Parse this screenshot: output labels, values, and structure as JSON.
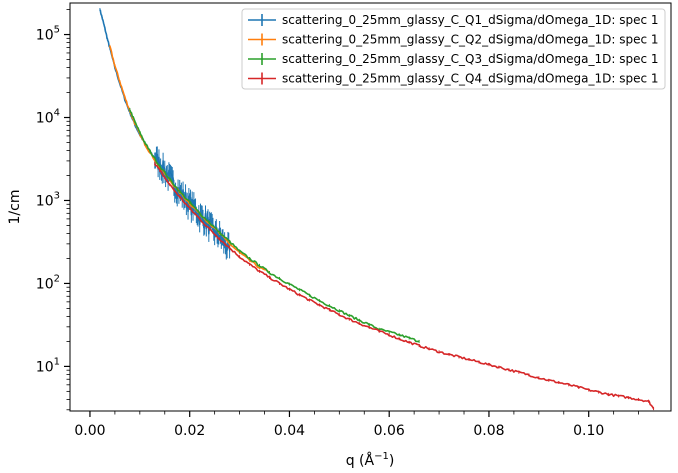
{
  "chart_data": {
    "type": "line",
    "title": "",
    "xlabel": "q (Å",
    "xlabel_sup": "−1",
    "xlabel_close": ")",
    "ylabel": "1/cm",
    "xlim": [
      -0.004,
      0.1165
    ],
    "ylim": [
      2.9,
      240000
    ],
    "yscale": "log",
    "grid": false,
    "legend_position": "top-right",
    "x_ticks": [
      {
        "value": 0.0,
        "label": "0.00"
      },
      {
        "value": 0.02,
        "label": "0.02"
      },
      {
        "value": 0.04,
        "label": "0.04"
      },
      {
        "value": 0.06,
        "label": "0.06"
      },
      {
        "value": 0.08,
        "label": "0.08"
      },
      {
        "value": 0.1,
        "label": "0.10"
      }
    ],
    "y_ticks": [
      {
        "value": 10,
        "base": "10",
        "exp": "1"
      },
      {
        "value": 100,
        "base": "10",
        "exp": "2"
      },
      {
        "value": 1000,
        "base": "10",
        "exp": "3"
      },
      {
        "value": 10000,
        "base": "10",
        "exp": "4"
      },
      {
        "value": 100000,
        "base": "10",
        "exp": "5"
      }
    ],
    "series": [
      {
        "name": "scattering_0_25mm_glassy_C_Q1_dSigma/dOmega_1D: spec 1",
        "color": "#1f77b4",
        "noisy_from": 0.013,
        "x": [
          0.002,
          0.0025,
          0.003,
          0.0035,
          0.004,
          0.005,
          0.006,
          0.007,
          0.008,
          0.009,
          0.01,
          0.011,
          0.012,
          0.013,
          0.014,
          0.015,
          0.016,
          0.017,
          0.018,
          0.019,
          0.02,
          0.021,
          0.022,
          0.023,
          0.024,
          0.025,
          0.026,
          0.027,
          0.028
        ],
        "y": [
          200000,
          155000,
          118000,
          88000,
          68000,
          40000,
          25500,
          16500,
          11500,
          8200,
          6200,
          4900,
          3950,
          3200,
          2700,
          2200,
          1800,
          1500,
          1230,
          1050,
          890,
          780,
          640,
          580,
          480,
          400,
          370,
          290,
          250
        ]
      },
      {
        "name": "scattering_0_25mm_glassy_C_Q2_dSigma/dOmega_1D: spec 1",
        "color": "#ff7f0e",
        "noisy_from": 1,
        "x": [
          0.004,
          0.005,
          0.006,
          0.007,
          0.008,
          0.009,
          0.01,
          0.011,
          0.012,
          0.014,
          0.016,
          0.018,
          0.02,
          0.022,
          0.024,
          0.026,
          0.028,
          0.03,
          0.032,
          0.034,
          0.036
        ],
        "y": [
          72000,
          42000,
          27000,
          17500,
          12000,
          8500,
          6300,
          4800,
          3800,
          2500,
          1750,
          1250,
          920,
          690,
          530,
          400,
          300,
          235,
          190,
          155,
          135
        ]
      },
      {
        "name": "scattering_0_25mm_glassy_C_Q3_dSigma/dOmega_1D: spec 1",
        "color": "#2ca02c",
        "noisy_from": 1,
        "x": [
          0.008,
          0.009,
          0.01,
          0.011,
          0.012,
          0.014,
          0.016,
          0.018,
          0.02,
          0.022,
          0.024,
          0.026,
          0.028,
          0.03,
          0.032,
          0.034,
          0.036,
          0.038,
          0.04,
          0.042,
          0.044,
          0.046,
          0.048,
          0.05,
          0.052,
          0.054,
          0.056,
          0.058,
          0.06,
          0.062,
          0.064,
          0.066
        ],
        "y": [
          12500,
          8900,
          6600,
          5000,
          3950,
          2600,
          1800,
          1280,
          950,
          700,
          540,
          410,
          320,
          245,
          200,
          165,
          135,
          115,
          98,
          84,
          72,
          62,
          54,
          47,
          41,
          36,
          32,
          28,
          26,
          24,
          22,
          20
        ]
      },
      {
        "name": "scattering_0_25mm_glassy_C_Q4_dSigma/dOmega_1D: spec 1",
        "color": "#d62728",
        "noisy_from": 1,
        "x": [
          0.013,
          0.014,
          0.016,
          0.018,
          0.02,
          0.022,
          0.024,
          0.026,
          0.028,
          0.03,
          0.032,
          0.034,
          0.036,
          0.038,
          0.04,
          0.042,
          0.044,
          0.046,
          0.048,
          0.05,
          0.052,
          0.054,
          0.056,
          0.058,
          0.06,
          0.062,
          0.064,
          0.066,
          0.068,
          0.07,
          0.072,
          0.074,
          0.076,
          0.078,
          0.08,
          0.082,
          0.084,
          0.086,
          0.088,
          0.09,
          0.092,
          0.094,
          0.096,
          0.098,
          0.1,
          0.102,
          0.104,
          0.106,
          0.108,
          0.11,
          0.112,
          0.113
        ],
        "y": [
          2800,
          2300,
          1550,
          1100,
          800,
          600,
          450,
          345,
          268,
          210,
          170,
          140,
          118,
          100,
          85,
          73,
          63,
          55,
          48,
          42,
          37,
          33,
          29.5,
          26.5,
          24,
          21.5,
          19.5,
          17.8,
          16.3,
          15,
          13.9,
          13,
          12.1,
          11.3,
          10.5,
          9.8,
          9.1,
          8.5,
          7.9,
          7.3,
          6.8,
          6.4,
          6.0,
          5.6,
          5.2,
          4.9,
          4.6,
          4.4,
          4.2,
          4.0,
          3.8,
          3.1
        ]
      }
    ]
  }
}
